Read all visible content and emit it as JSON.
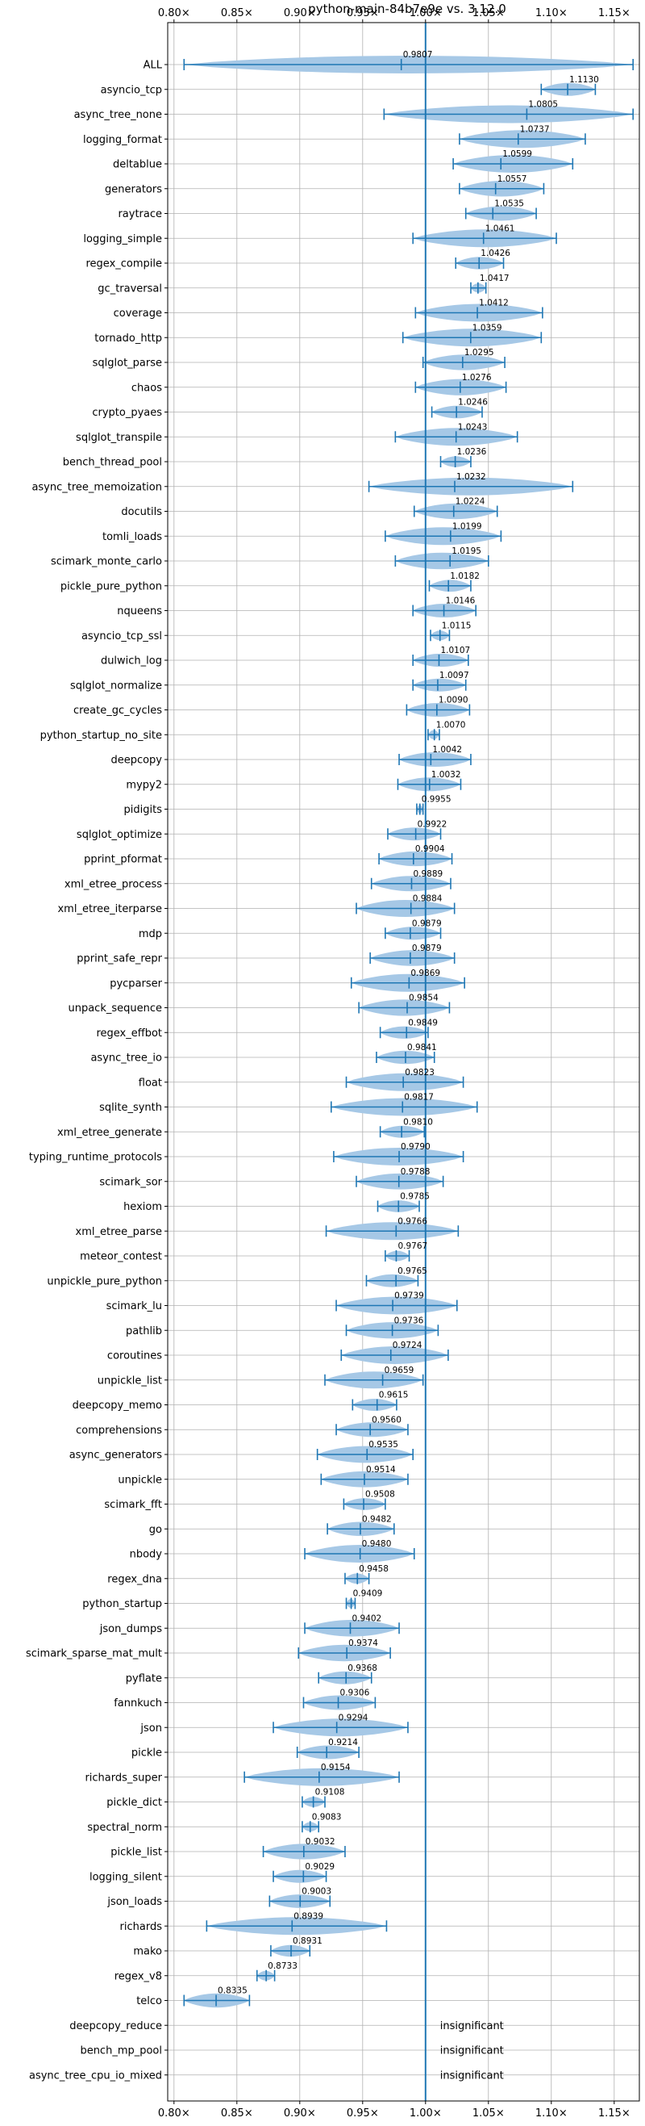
{
  "chart_data": {
    "type": "violin",
    "title": "python-main-84b7e9e vs. 3.12.0",
    "orientation": "horizontal",
    "xlim": [
      0.795,
      1.17
    ],
    "x_ticks": [
      0.8,
      0.85,
      0.9,
      0.95,
      1.0,
      1.05,
      1.1,
      1.15
    ],
    "x_tick_labels": [
      "0.80×",
      "0.85×",
      "0.90×",
      "0.95×",
      "1.00×",
      "1.05×",
      "1.10×",
      "1.15×"
    ],
    "reference_line": 1.0,
    "grid": true,
    "colors": {
      "body": "#a6c8e6",
      "line": "#1f77b4",
      "grid": "#b0b0b0",
      "text": "#000000"
    },
    "benchmarks": [
      {
        "name": "ALL",
        "median": 0.9807,
        "min": 0.808,
        "max": 1.165
      },
      {
        "name": "asyncio_tcp",
        "median": 1.113,
        "min": 1.092,
        "max": 1.135
      },
      {
        "name": "async_tree_none",
        "median": 1.0805,
        "min": 0.967,
        "max": 1.165
      },
      {
        "name": "logging_format",
        "median": 1.0737,
        "min": 1.027,
        "max": 1.127
      },
      {
        "name": "deltablue",
        "median": 1.0599,
        "min": 1.022,
        "max": 1.117
      },
      {
        "name": "generators",
        "median": 1.0557,
        "min": 1.027,
        "max": 1.094
      },
      {
        "name": "raytrace",
        "median": 1.0535,
        "min": 1.032,
        "max": 1.088
      },
      {
        "name": "logging_simple",
        "median": 1.0461,
        "min": 0.99,
        "max": 1.104
      },
      {
        "name": "regex_compile",
        "median": 1.0426,
        "min": 1.024,
        "max": 1.062
      },
      {
        "name": "gc_traversal",
        "median": 1.0417,
        "min": 1.036,
        "max": 1.048
      },
      {
        "name": "coverage",
        "median": 1.0412,
        "min": 0.992,
        "max": 1.093
      },
      {
        "name": "tornado_http",
        "median": 1.0359,
        "min": 0.982,
        "max": 1.092
      },
      {
        "name": "sqlglot_parse",
        "median": 1.0295,
        "min": 0.998,
        "max": 1.063
      },
      {
        "name": "chaos",
        "median": 1.0276,
        "min": 0.992,
        "max": 1.064
      },
      {
        "name": "crypto_pyaes",
        "median": 1.0246,
        "min": 1.005,
        "max": 1.045
      },
      {
        "name": "sqlglot_transpile",
        "median": 1.0243,
        "min": 0.976,
        "max": 1.073
      },
      {
        "name": "bench_thread_pool",
        "median": 1.0236,
        "min": 1.012,
        "max": 1.036
      },
      {
        "name": "async_tree_memoization",
        "median": 1.0232,
        "min": 0.955,
        "max": 1.117
      },
      {
        "name": "docutils",
        "median": 1.0224,
        "min": 0.991,
        "max": 1.057
      },
      {
        "name": "tomli_loads",
        "median": 1.0199,
        "min": 0.968,
        "max": 1.06
      },
      {
        "name": "scimark_monte_carlo",
        "median": 1.0195,
        "min": 0.976,
        "max": 1.05
      },
      {
        "name": "pickle_pure_python",
        "median": 1.0182,
        "min": 1.003,
        "max": 1.036
      },
      {
        "name": "nqueens",
        "median": 1.0146,
        "min": 0.99,
        "max": 1.04
      },
      {
        "name": "asyncio_tcp_ssl",
        "median": 1.0115,
        "min": 1.004,
        "max": 1.019
      },
      {
        "name": "dulwich_log",
        "median": 1.0107,
        "min": 0.99,
        "max": 1.034
      },
      {
        "name": "sqlglot_normalize",
        "median": 1.0097,
        "min": 0.99,
        "max": 1.032
      },
      {
        "name": "create_gc_cycles",
        "median": 1.009,
        "min": 0.985,
        "max": 1.035
      },
      {
        "name": "python_startup_no_site",
        "median": 1.007,
        "min": 1.002,
        "max": 1.011
      },
      {
        "name": "deepcopy",
        "median": 1.0042,
        "min": 0.979,
        "max": 1.036
      },
      {
        "name": "mypy2",
        "median": 1.0032,
        "min": 0.978,
        "max": 1.028
      },
      {
        "name": "pidigits",
        "median": 0.9955,
        "min": 0.993,
        "max": 0.998
      },
      {
        "name": "sqlglot_optimize",
        "median": 0.9922,
        "min": 0.97,
        "max": 1.012
      },
      {
        "name": "pprint_pformat",
        "median": 0.9904,
        "min": 0.963,
        "max": 1.021
      },
      {
        "name": "xml_etree_process",
        "median": 0.9889,
        "min": 0.957,
        "max": 1.02
      },
      {
        "name": "xml_etree_iterparse",
        "median": 0.9884,
        "min": 0.945,
        "max": 1.023
      },
      {
        "name": "mdp",
        "median": 0.9879,
        "min": 0.968,
        "max": 1.012
      },
      {
        "name": "pprint_safe_repr",
        "median": 0.9879,
        "min": 0.956,
        "max": 1.023
      },
      {
        "name": "pycparser",
        "median": 0.9869,
        "min": 0.941,
        "max": 1.031
      },
      {
        "name": "unpack_sequence",
        "median": 0.9854,
        "min": 0.947,
        "max": 1.019
      },
      {
        "name": "regex_effbot",
        "median": 0.9849,
        "min": 0.964,
        "max": 1.002
      },
      {
        "name": "async_tree_io",
        "median": 0.9841,
        "min": 0.961,
        "max": 1.007
      },
      {
        "name": "float",
        "median": 0.9823,
        "min": 0.937,
        "max": 1.03
      },
      {
        "name": "sqlite_synth",
        "median": 0.9817,
        "min": 0.925,
        "max": 1.041
      },
      {
        "name": "xml_etree_generate",
        "median": 0.981,
        "min": 0.964,
        "max": 0.999
      },
      {
        "name": "typing_runtime_protocols",
        "median": 0.979,
        "min": 0.927,
        "max": 1.03
      },
      {
        "name": "scimark_sor",
        "median": 0.9788,
        "min": 0.945,
        "max": 1.014
      },
      {
        "name": "hexiom",
        "median": 0.9785,
        "min": 0.962,
        "max": 0.995
      },
      {
        "name": "xml_etree_parse",
        "median": 0.9766,
        "min": 0.921,
        "max": 1.026
      },
      {
        "name": "meteor_contest",
        "median": 0.9767,
        "min": 0.968,
        "max": 0.987
      },
      {
        "name": "unpickle_pure_python",
        "median": 0.9765,
        "min": 0.953,
        "max": 0.994
      },
      {
        "name": "scimark_lu",
        "median": 0.9739,
        "min": 0.929,
        "max": 1.025
      },
      {
        "name": "pathlib",
        "median": 0.9736,
        "min": 0.937,
        "max": 1.01
      },
      {
        "name": "coroutines",
        "median": 0.9724,
        "min": 0.933,
        "max": 1.018
      },
      {
        "name": "unpickle_list",
        "median": 0.9659,
        "min": 0.92,
        "max": 0.998
      },
      {
        "name": "deepcopy_memo",
        "median": 0.9615,
        "min": 0.942,
        "max": 0.977
      },
      {
        "name": "comprehensions",
        "median": 0.956,
        "min": 0.929,
        "max": 0.986
      },
      {
        "name": "async_generators",
        "median": 0.9535,
        "min": 0.914,
        "max": 0.99
      },
      {
        "name": "unpickle",
        "median": 0.9514,
        "min": 0.917,
        "max": 0.986
      },
      {
        "name": "scimark_fft",
        "median": 0.9508,
        "min": 0.935,
        "max": 0.968
      },
      {
        "name": "go",
        "median": 0.9482,
        "min": 0.922,
        "max": 0.975
      },
      {
        "name": "nbody",
        "median": 0.948,
        "min": 0.904,
        "max": 0.991
      },
      {
        "name": "regex_dna",
        "median": 0.9458,
        "min": 0.936,
        "max": 0.955
      },
      {
        "name": "python_startup",
        "median": 0.9409,
        "min": 0.937,
        "max": 0.944
      },
      {
        "name": "json_dumps",
        "median": 0.9402,
        "min": 0.904,
        "max": 0.979
      },
      {
        "name": "scimark_sparse_mat_mult",
        "median": 0.9374,
        "min": 0.899,
        "max": 0.972
      },
      {
        "name": "pyflate",
        "median": 0.9368,
        "min": 0.915,
        "max": 0.957
      },
      {
        "name": "fannkuch",
        "median": 0.9306,
        "min": 0.903,
        "max": 0.96
      },
      {
        "name": "json",
        "median": 0.9294,
        "min": 0.879,
        "max": 0.986
      },
      {
        "name": "pickle",
        "median": 0.9214,
        "min": 0.898,
        "max": 0.947
      },
      {
        "name": "richards_super",
        "median": 0.9154,
        "min": 0.856,
        "max": 0.979
      },
      {
        "name": "pickle_dict",
        "median": 0.9108,
        "min": 0.902,
        "max": 0.92
      },
      {
        "name": "spectral_norm",
        "median": 0.9083,
        "min": 0.902,
        "max": 0.915
      },
      {
        "name": "pickle_list",
        "median": 0.9032,
        "min": 0.871,
        "max": 0.936
      },
      {
        "name": "logging_silent",
        "median": 0.9029,
        "min": 0.879,
        "max": 0.921
      },
      {
        "name": "json_loads",
        "median": 0.9003,
        "min": 0.876,
        "max": 0.924
      },
      {
        "name": "richards",
        "median": 0.8939,
        "min": 0.826,
        "max": 0.969
      },
      {
        "name": "mako",
        "median": 0.8931,
        "min": 0.877,
        "max": 0.908
      },
      {
        "name": "regex_v8",
        "median": 0.8733,
        "min": 0.866,
        "max": 0.88
      },
      {
        "name": "telco",
        "median": 0.8335,
        "min": 0.808,
        "max": 0.86
      },
      {
        "name": "deepcopy_reduce",
        "note": "insignificant"
      },
      {
        "name": "bench_mp_pool",
        "note": "insignificant"
      },
      {
        "name": "async_tree_cpu_io_mixed",
        "note": "insignificant"
      }
    ]
  }
}
